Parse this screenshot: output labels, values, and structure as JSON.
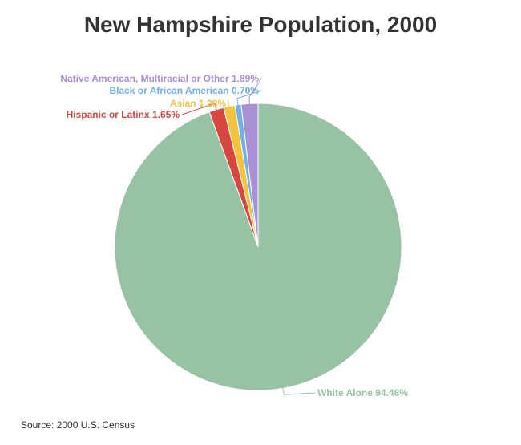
{
  "chart_data": {
    "type": "pie",
    "title": "New Hampshire Population, 2000",
    "categories": [
      "White Alone",
      "Hispanic or Latinx",
      "Asian",
      "Black or African American",
      "Native American, Multiracial or Other"
    ],
    "values": [
      94.48,
      1.65,
      1.28,
      0.7,
      1.89
    ],
    "value_labels": [
      "94.48%",
      "1.65%",
      "1.28%",
      "0.70%",
      "1.89%"
    ],
    "colors": [
      "#97c2a4",
      "#d6473f",
      "#f0c43f",
      "#6fb1e8",
      "#a98fd4"
    ],
    "source": "Source: 2000 U.S. Census"
  }
}
